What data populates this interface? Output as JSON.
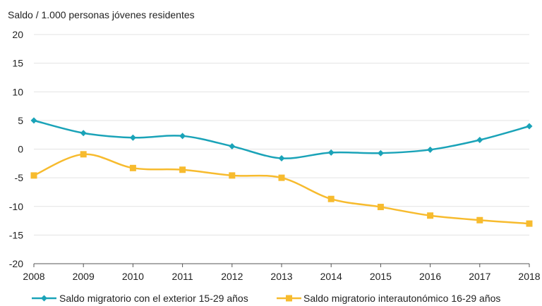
{
  "chart_data": {
    "type": "line",
    "ylabel": "Saldo / 1.000 personas jóvenes residentes",
    "xlabel": "",
    "x": [
      2008,
      2009,
      2010,
      2011,
      2012,
      2013,
      2014,
      2015,
      2016,
      2017,
      2018
    ],
    "ylim": [
      -20,
      20
    ],
    "yticks": [
      20,
      15,
      10,
      5,
      0,
      -5,
      -10,
      -15,
      -20
    ],
    "ytick_labels": [
      "20",
      "15",
      "10",
      "5",
      "0",
      "-5",
      "-10",
      "-15",
      "-20"
    ],
    "grid": "horizontal",
    "legend": "bottom",
    "series": [
      {
        "name": "Saldo migratorio con el exterior 15-29 años",
        "color": "#1aa3b8",
        "marker": "diamond",
        "values": [
          5.0,
          2.8,
          2.0,
          2.3,
          0.5,
          -1.6,
          -0.6,
          -0.7,
          -0.1,
          1.6,
          4.0
        ]
      },
      {
        "name": "Saldo migratorio interautonómico 16-29 años",
        "color": "#f7bb2e",
        "marker": "square",
        "values": [
          -4.6,
          -0.9,
          -3.3,
          -3.6,
          -4.6,
          -5.0,
          -8.7,
          -10.1,
          -11.6,
          -12.4,
          -13.0
        ]
      }
    ]
  }
}
